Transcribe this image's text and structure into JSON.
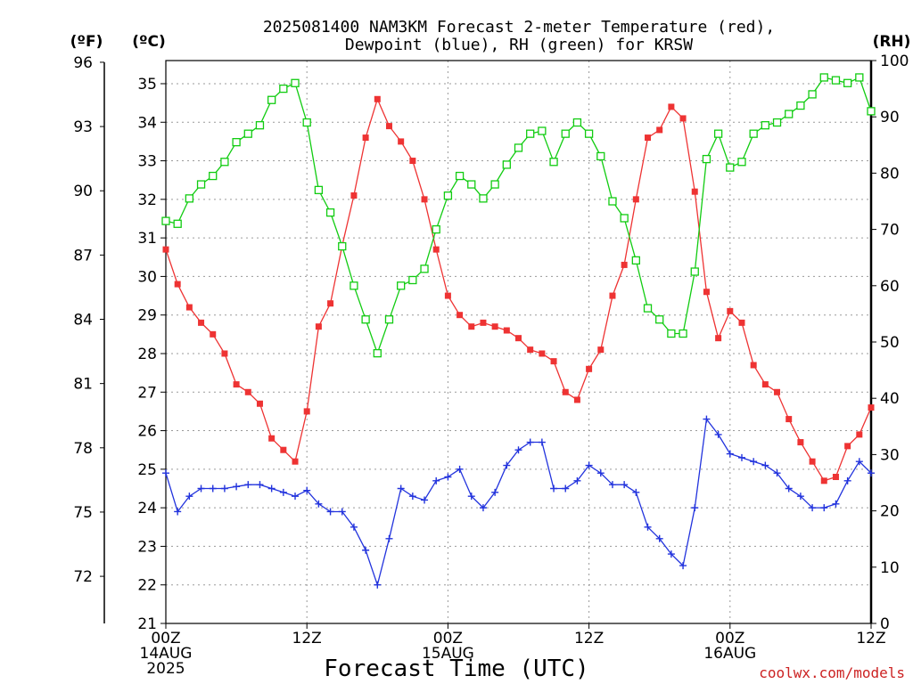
{
  "chart_data": {
    "type": "line",
    "title_line1": "2025081400 NAM3KM Forecast 2-meter Temperature (red),",
    "title_line2": "Dewpoint (blue), RH (green) for KRSW",
    "xlabel": "Forecast Time (UTC)",
    "credit": "coolwx.com/models",
    "unit_left_f": "(ºF)",
    "unit_left_c": "(ºC)",
    "unit_right": "(RH)",
    "x_step_hours": 1,
    "x_range_hours": [
      0,
      60
    ],
    "x_tick_labels": [
      {
        "hour": 0,
        "lines": [
          "00Z",
          "14AUG",
          "2025"
        ]
      },
      {
        "hour": 12,
        "lines": [
          "12Z"
        ]
      },
      {
        "hour": 24,
        "lines": [
          "00Z",
          "15AUG"
        ]
      },
      {
        "hour": 36,
        "lines": [
          "12Z"
        ]
      },
      {
        "hour": 48,
        "lines": [
          "00Z",
          "16AUG"
        ]
      },
      {
        "hour": 60,
        "lines": [
          "12Z"
        ]
      }
    ],
    "ylim_c": [
      21,
      35.6
    ],
    "y_ticks_c": [
      21,
      22,
      23,
      24,
      25,
      26,
      27,
      28,
      29,
      30,
      31,
      32,
      33,
      34,
      35
    ],
    "y_ticks_f": [
      72,
      75,
      78,
      81,
      84,
      87,
      90,
      93,
      96
    ],
    "ylim_rh": [
      0,
      100
    ],
    "y_ticks_rh": [
      0,
      10,
      20,
      30,
      40,
      50,
      60,
      70,
      80,
      90,
      100
    ],
    "grid": true,
    "colors": {
      "temperature": "#ee3333",
      "dewpoint": "#2233dd",
      "rh": "#11cc11"
    },
    "series": [
      {
        "key": "temperature",
        "axis": "celsius",
        "marker": "filled-square",
        "values": [
          30.7,
          29.8,
          29.2,
          28.8,
          28.5,
          28.0,
          27.2,
          27.0,
          26.7,
          25.8,
          25.5,
          25.2,
          26.5,
          28.7,
          29.3,
          30.8,
          32.1,
          33.6,
          34.6,
          33.9,
          33.5,
          33.0,
          32.0,
          30.7,
          29.5,
          29.0,
          28.7,
          28.8,
          28.7,
          28.6,
          28.4,
          28.1,
          28.0,
          27.8,
          27.0,
          26.8,
          27.6,
          28.1,
          29.5,
          30.3,
          32.0,
          33.6,
          33.8,
          34.4,
          34.1,
          32.2,
          29.6,
          28.4,
          29.1,
          28.8,
          27.7,
          27.2,
          27.0,
          26.3,
          25.7,
          25.2,
          24.7,
          24.8,
          25.6,
          25.9,
          26.6
        ]
      },
      {
        "key": "dewpoint",
        "axis": "celsius",
        "marker": "plus",
        "values": [
          24.9,
          23.9,
          24.3,
          24.5,
          24.5,
          24.5,
          24.55,
          24.6,
          24.6,
          24.5,
          24.4,
          24.3,
          24.45,
          24.1,
          23.9,
          23.9,
          23.5,
          22.9,
          22.0,
          23.2,
          24.5,
          24.3,
          24.2,
          24.7,
          24.8,
          25.0,
          24.3,
          24.0,
          24.4,
          25.1,
          25.5,
          25.7,
          25.7,
          24.5,
          24.5,
          24.7,
          25.1,
          24.9,
          24.6,
          24.6,
          24.4,
          23.5,
          23.2,
          22.8,
          22.5,
          24.0,
          26.3,
          25.9,
          25.4,
          25.3,
          25.2,
          25.1,
          24.9,
          24.5,
          24.3,
          24.0,
          24.0,
          24.1,
          24.7,
          25.2,
          24.9
        ]
      },
      {
        "key": "rh",
        "axis": "rh",
        "marker": "open-square",
        "values": [
          71.5,
          71,
          75.5,
          78,
          79.5,
          82,
          85.5,
          87,
          88.5,
          93,
          95,
          96,
          89,
          77,
          73,
          67,
          60,
          54,
          48,
          54,
          60,
          61,
          63,
          70,
          76,
          79.5,
          78,
          75.5,
          78,
          81.5,
          84.5,
          87,
          87.5,
          82,
          87,
          89,
          87,
          83,
          75,
          72,
          64.5,
          56,
          54,
          51.5,
          51.5,
          62.5,
          82.5,
          87,
          81,
          82,
          87,
          88.5,
          89,
          90.5,
          92,
          94,
          97,
          96.5,
          96,
          97,
          91
        ]
      }
    ]
  }
}
